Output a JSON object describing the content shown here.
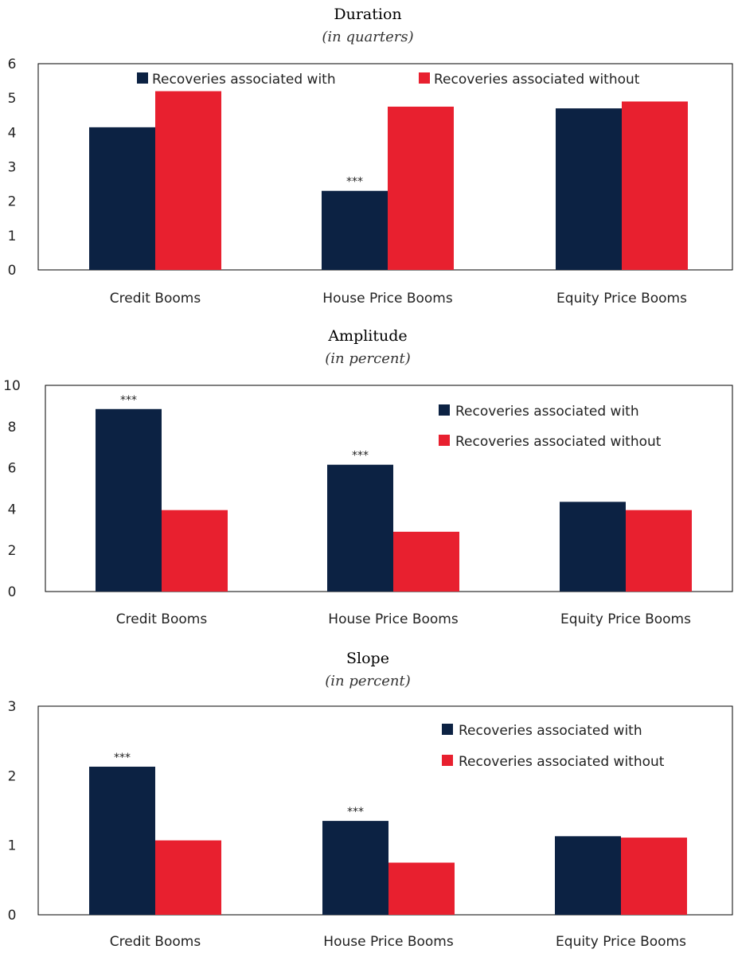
{
  "colors": {
    "with": "#0c2243",
    "without": "#e8202f"
  },
  "chart_data": [
    {
      "type": "bar",
      "title": "Duration",
      "subtitle": "(in quarters)",
      "categories": [
        "Credit Booms",
        "House Price Booms",
        "Equity Price Booms"
      ],
      "series": [
        {
          "name": "Recoveries associated with",
          "values": [
            4.15,
            2.3,
            4.7
          ]
        },
        {
          "name": "Recoveries associated without",
          "values": [
            5.2,
            4.75,
            4.9
          ]
        }
      ],
      "yticks": [
        "0",
        "1",
        "2",
        "3",
        "4",
        "5",
        "6"
      ],
      "ylim": [
        0,
        6
      ],
      "annotations": [
        {
          "text": "***",
          "category": 1,
          "series": 0
        }
      ],
      "legend": "top, horizontal"
    },
    {
      "type": "bar",
      "title": "Amplitude",
      "subtitle": "(in percent)",
      "categories": [
        "Credit Booms",
        "House Price Booms",
        "Equity Price Booms"
      ],
      "series": [
        {
          "name": "Recoveries associated with",
          "values": [
            8.85,
            6.15,
            4.35
          ]
        },
        {
          "name": "Recoveries associated without",
          "values": [
            3.95,
            2.9,
            3.95
          ]
        }
      ],
      "yticks": [
        "0",
        "2",
        "4",
        "6",
        "8",
        "10"
      ],
      "ylim": [
        0,
        10
      ],
      "annotations": [
        {
          "text": "***",
          "category": 0,
          "series": 0
        },
        {
          "text": "***",
          "category": 1,
          "series": 0
        }
      ],
      "legend": "top-right"
    },
    {
      "type": "bar",
      "title": "Slope",
      "subtitle": "(in percent)",
      "categories": [
        "Credit Booms",
        "House Price Booms",
        "Equity Price Booms"
      ],
      "series": [
        {
          "name": "Recoveries associated with",
          "values": [
            2.13,
            1.35,
            1.13
          ]
        },
        {
          "name": "Recoveries associated without",
          "values": [
            1.07,
            0.75,
            1.11
          ]
        }
      ],
      "yticks": [
        "0",
        "1",
        "2",
        "3"
      ],
      "ylim": [
        0,
        3
      ],
      "annotations": [
        {
          "text": "***",
          "category": 0,
          "series": 0
        },
        {
          "text": "***",
          "category": 1,
          "series": 0
        }
      ],
      "legend": "top-right"
    }
  ]
}
